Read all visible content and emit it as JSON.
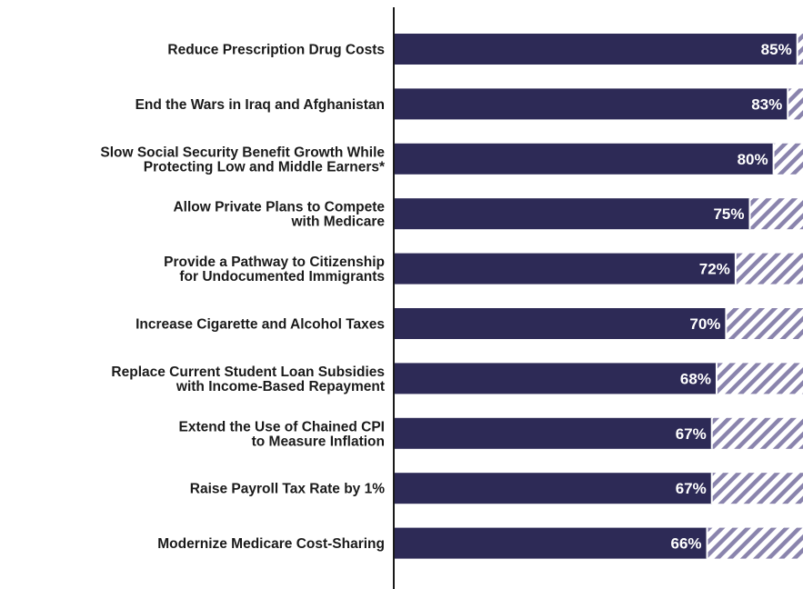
{
  "colors": {
    "bar": "#2d2a56",
    "hatch": "#8a84ad",
    "axis": "#1a1a1a",
    "label": "#1a1a1a",
    "value_text": "#ffffff"
  },
  "chart_data": {
    "type": "bar",
    "orientation": "horizontal",
    "categories": [
      [
        "Reduce Prescription Drug Costs"
      ],
      [
        "End the Wars in Iraq and Afghanistan"
      ],
      [
        "Slow Social Security Benefit Growth While",
        "Protecting Low and Middle Earners*"
      ],
      [
        "Allow Private Plans to Compete",
        "with Medicare"
      ],
      [
        "Provide a Pathway to Citizenship",
        "for Undocumented Immigrants"
      ],
      [
        "Increase Cigarette and Alcohol Taxes"
      ],
      [
        "Replace Current Student Loan Subsidies",
        "with Income-Based Repayment"
      ],
      [
        "Extend the Use of Chained CPI",
        "to Measure Inflation"
      ],
      [
        "Raise Payroll Tax Rate by 1%"
      ],
      [
        "Modernize Medicare Cost-Sharing"
      ]
    ],
    "values": [
      85,
      83,
      80,
      75,
      72,
      70,
      68,
      67,
      67,
      66
    ],
    "value_labels": [
      "85%",
      "83%",
      "80%",
      "75%",
      "72%",
      "70%",
      "68%",
      "67%",
      "67%",
      "66%"
    ],
    "xlim": [
      0,
      100
    ],
    "remainder_style": "hatched",
    "title": "",
    "xlabel": "",
    "ylabel": "",
    "grid": false,
    "legend": "none"
  }
}
